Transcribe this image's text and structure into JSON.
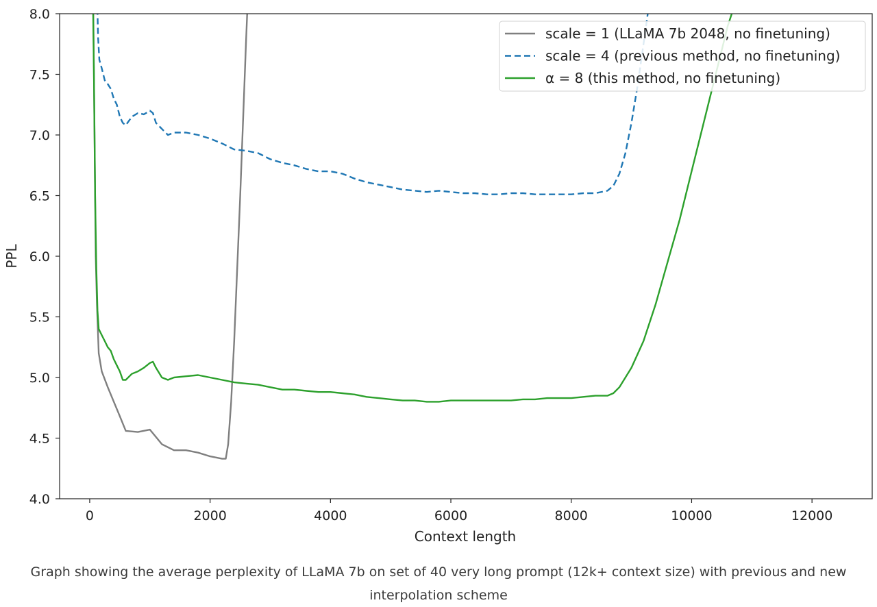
{
  "chart_data": {
    "type": "line",
    "xlabel": "Context length",
    "ylabel": "PPL",
    "xlim": [
      -500,
      13000
    ],
    "ylim": [
      4.0,
      8.0
    ],
    "x_ticks": [
      0,
      2000,
      4000,
      6000,
      8000,
      10000,
      12000
    ],
    "y_ticks": [
      4.0,
      4.5,
      5.0,
      5.5,
      6.0,
      6.5,
      7.0,
      7.5,
      8.0
    ],
    "grid": false,
    "legend_position": "top-right",
    "series": [
      {
        "name": "scale = 1 (LLaMA 7b 2048, no finetuning)",
        "color": "#7f7f7f",
        "style": "solid",
        "x": [
          50,
          80,
          100,
          120,
          150,
          200,
          300,
          400,
          500,
          600,
          800,
          1000,
          1200,
          1400,
          1600,
          1800,
          2000,
          2200,
          2260,
          2300,
          2350,
          2400,
          2500,
          2600,
          2700
        ],
        "y": [
          8.5,
          7.0,
          6.0,
          5.6,
          5.2,
          5.05,
          4.92,
          4.8,
          4.68,
          4.56,
          4.55,
          4.57,
          4.45,
          4.4,
          4.4,
          4.38,
          4.35,
          4.33,
          4.33,
          4.45,
          4.8,
          5.3,
          6.5,
          7.8,
          9.0
        ]
      },
      {
        "name": "scale = 4 (previous method, no finetuning)",
        "color": "#1f77b4",
        "style": "dashed",
        "x": [
          120,
          140,
          160,
          200,
          250,
          300,
          350,
          400,
          450,
          500,
          550,
          600,
          700,
          800,
          900,
          1000,
          1050,
          1100,
          1200,
          1300,
          1400,
          1600,
          1800,
          2000,
          2200,
          2400,
          2600,
          2800,
          3000,
          3200,
          3400,
          3600,
          3800,
          4000,
          4200,
          4400,
          4600,
          4800,
          5000,
          5200,
          5400,
          5600,
          5800,
          6000,
          6200,
          6400,
          6600,
          6800,
          7000,
          7200,
          7400,
          7600,
          7800,
          8000,
          8200,
          8400,
          8600,
          8700,
          8800,
          8900,
          9000,
          9100,
          9200,
          9300
        ],
        "y": [
          8.2,
          7.8,
          7.62,
          7.55,
          7.45,
          7.42,
          7.38,
          7.3,
          7.25,
          7.15,
          7.1,
          7.08,
          7.15,
          7.18,
          7.17,
          7.2,
          7.18,
          7.1,
          7.05,
          7.0,
          7.02,
          7.02,
          7.0,
          6.97,
          6.93,
          6.88,
          6.87,
          6.85,
          6.8,
          6.77,
          6.75,
          6.72,
          6.7,
          6.7,
          6.68,
          6.64,
          6.61,
          6.59,
          6.57,
          6.55,
          6.54,
          6.53,
          6.54,
          6.53,
          6.52,
          6.52,
          6.51,
          6.51,
          6.52,
          6.52,
          6.51,
          6.51,
          6.51,
          6.51,
          6.52,
          6.52,
          6.54,
          6.58,
          6.68,
          6.85,
          7.1,
          7.4,
          7.75,
          8.1
        ]
      },
      {
        "name": "α = 8 (this method, no finetuning)",
        "color": "#2ca02c",
        "style": "solid",
        "x": [
          50,
          70,
          90,
          110,
          130,
          150,
          200,
          250,
          300,
          350,
          400,
          450,
          500,
          550,
          600,
          700,
          800,
          900,
          1000,
          1050,
          1100,
          1200,
          1300,
          1400,
          1600,
          1800,
          2000,
          2200,
          2400,
          2600,
          2800,
          3000,
          3200,
          3400,
          3600,
          3800,
          4000,
          4200,
          4400,
          4600,
          4800,
          5000,
          5200,
          5400,
          5600,
          5800,
          6000,
          6200,
          6400,
          6600,
          6800,
          7000,
          7200,
          7400,
          7600,
          7800,
          8000,
          8200,
          8400,
          8600,
          8700,
          8800,
          9000,
          9200,
          9400,
          9600,
          9800,
          10000,
          10200,
          10400,
          10600,
          10800,
          10900
        ],
        "y": [
          8.3,
          7.5,
          6.5,
          5.9,
          5.55,
          5.4,
          5.35,
          5.3,
          5.25,
          5.22,
          5.15,
          5.1,
          5.05,
          4.98,
          4.98,
          5.03,
          5.05,
          5.08,
          5.12,
          5.13,
          5.08,
          5.0,
          4.98,
          5.0,
          5.01,
          5.02,
          5.0,
          4.98,
          4.96,
          4.95,
          4.94,
          4.92,
          4.9,
          4.9,
          4.89,
          4.88,
          4.88,
          4.87,
          4.86,
          4.84,
          4.83,
          4.82,
          4.81,
          4.81,
          4.8,
          4.8,
          4.81,
          4.81,
          4.81,
          4.81,
          4.81,
          4.81,
          4.82,
          4.82,
          4.83,
          4.83,
          4.83,
          4.84,
          4.85,
          4.85,
          4.87,
          4.92,
          5.08,
          5.3,
          5.6,
          5.95,
          6.3,
          6.7,
          7.1,
          7.5,
          7.9,
          8.2,
          8.3
        ]
      }
    ]
  },
  "caption": "Graph showing the average perplexity of LLaMA 7b on set of 40 very long prompt (12k+ context size) with previous and new interpolation scheme"
}
